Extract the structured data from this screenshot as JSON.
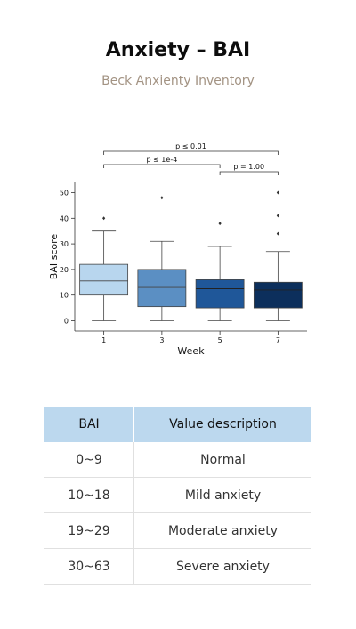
{
  "header": {
    "title": "Anxiety – BAI",
    "subtitle": "Beck Anxienty Inventory"
  },
  "chart_data": {
    "type": "box",
    "xlabel": "Week",
    "ylabel": "BAI score",
    "ylim": [
      -4,
      54
    ],
    "yticks": [
      0,
      10,
      20,
      30,
      40,
      50
    ],
    "categories": [
      "1",
      "3",
      "5",
      "7"
    ],
    "colors": [
      "#b8d6ee",
      "#5b8fc3",
      "#1f5799",
      "#0c2f5c"
    ],
    "boxes": [
      {
        "category": "1",
        "min": 0,
        "q1": 10,
        "median": 15.5,
        "q3": 22,
        "max": 35,
        "outliers": [
          40
        ]
      },
      {
        "category": "3",
        "min": 0,
        "q1": 5.5,
        "median": 13,
        "q3": 20,
        "max": 31,
        "outliers": [
          48
        ]
      },
      {
        "category": "5",
        "min": 0,
        "q1": 5,
        "median": 12.5,
        "q3": 16,
        "max": 29,
        "outliers": [
          38
        ]
      },
      {
        "category": "7",
        "min": 0,
        "q1": 5,
        "median": 12,
        "q3": 15,
        "max": 27,
        "outliers": [
          34,
          41,
          50
        ]
      }
    ],
    "annotations": [
      {
        "from": "5",
        "to": "7",
        "label": "p = 1.00"
      },
      {
        "from": "1",
        "to": "5",
        "label": "p ≤ 1e-4"
      },
      {
        "from": "1",
        "to": "7",
        "label": "p ≤ 0.01"
      }
    ],
    "grid": false
  },
  "table": {
    "headers": [
      "BAI",
      "Value description"
    ],
    "header_bg": "#bcd8ee",
    "rows": [
      [
        "0~9",
        "Normal"
      ],
      [
        "10~18",
        "Mild anxiety"
      ],
      [
        "19~29",
        "Moderate anxiety"
      ],
      [
        "30~63",
        "Severe anxiety"
      ]
    ]
  }
}
